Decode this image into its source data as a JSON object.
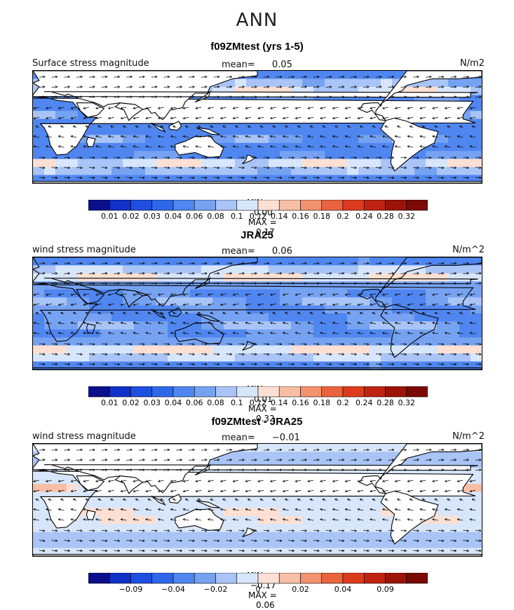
{
  "figure": {
    "title": "ANN"
  },
  "chart_data": [
    {
      "type": "heatmap",
      "title": "f09ZMtest (yrs 1-5)",
      "variable_label": "Surface stress magnitude",
      "mean_label": "mean=",
      "mean_value": "0.05",
      "units": "N/m2",
      "min_label": "MIN =",
      "min_value": "0.00",
      "max_label": "MAX =",
      "max_value": "0.17",
      "colorbar_ticks": [
        "0.01",
        "0.02",
        "0.03",
        "0.04",
        "0.06",
        "0.08",
        "0.1",
        "0.12",
        "0.14",
        "0.16",
        "0.18",
        "0.2",
        "0.24",
        "0.28",
        "0.32"
      ],
      "colorbar_colors": [
        "#0b0f8a",
        "#1030c8",
        "#1f4fe0",
        "#2e68ea",
        "#4f86f0",
        "#76a2f2",
        "#a9c4f6",
        "#d8e6fb",
        "#fde0d3",
        "#f8bfa6",
        "#f2926e",
        "#e9633f",
        "#dc3b1d",
        "#c02312",
        "#9c1408",
        "#7a0a03"
      ],
      "field": "model"
    },
    {
      "type": "heatmap",
      "title": "JRA25",
      "variable_label": "wind stress magnitude",
      "mean_label": "mean=",
      "mean_value": "0.06",
      "units": "N/m^2",
      "min_label": "MIN =",
      "min_value": "0.01",
      "max_label": "MAX =",
      "max_value": "0.32",
      "colorbar_ticks": [
        "0.01",
        "0.02",
        "0.03",
        "0.04",
        "0.06",
        "0.08",
        "0.1",
        "0.12",
        "0.14",
        "0.16",
        "0.18",
        "0.2",
        "0.24",
        "0.28",
        "0.32"
      ],
      "colorbar_colors": [
        "#0b0f8a",
        "#1030c8",
        "#1f4fe0",
        "#2e68ea",
        "#4f86f0",
        "#76a2f2",
        "#a9c4f6",
        "#d8e6fb",
        "#fde0d3",
        "#f8bfa6",
        "#f2926e",
        "#e9633f",
        "#dc3b1d",
        "#c02312",
        "#9c1408",
        "#7a0a03"
      ],
      "field": "obs"
    },
    {
      "type": "heatmap",
      "title": "f09ZMtest - JRA25",
      "variable_label": "wind stress magnitude",
      "mean_label": "mean=",
      "mean_value": "−0.01",
      "units": "N/m^2",
      "min_label": "MIN =",
      "min_value": "−0.17",
      "max_label": "MAX =",
      "max_value": "0.06",
      "colorbar_ticks": [
        "",
        "−0.09",
        "",
        "−0.04",
        "",
        "−0.02",
        "",
        "0",
        "",
        "0.02",
        "",
        "0.04",
        "",
        "0.09",
        ""
      ],
      "colorbar_colors": [
        "#0b0f8a",
        "#1030c8",
        "#1f4fe0",
        "#2e68ea",
        "#4f86f0",
        "#76a2f2",
        "#a9c4f6",
        "#d8e6fb",
        "#fde0d3",
        "#f8bfa6",
        "#f2926e",
        "#e9633f",
        "#dc3b1d",
        "#c02312",
        "#9c1408",
        "#7a0a03"
      ],
      "field": "diff"
    }
  ]
}
